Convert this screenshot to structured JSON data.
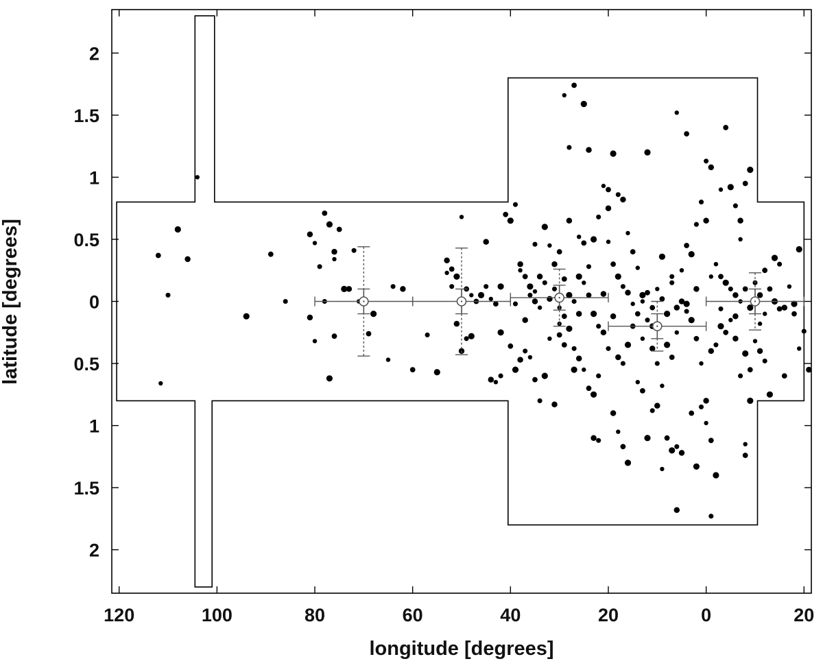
{
  "chart_data": {
    "type": "scatter",
    "xlabel": "longitude [degrees]",
    "ylabel": "latitude [degrees]",
    "xlim": [
      121.5,
      -21.5
    ],
    "ylim": [
      -2.35,
      2.35
    ],
    "x_ticks": [
      120,
      100,
      80,
      60,
      40,
      20,
      0,
      -20
    ],
    "x_tick_labels": [
      "120",
      "100",
      "80",
      "60",
      "40",
      "20",
      "0",
      "20"
    ],
    "y_ticks": [
      2,
      1.5,
      1,
      0.5,
      0,
      -0.5,
      -1,
      -1.5,
      -2
    ],
    "y_tick_labels": [
      "2",
      "1.5",
      "1",
      "0.5",
      "0",
      "0.5",
      "1",
      "1.5",
      "2"
    ],
    "grid": false,
    "legend": "none",
    "survey_boundary": [
      [
        120.5,
        0.8
      ],
      [
        104.5,
        0.8
      ],
      [
        104.5,
        2.3
      ],
      [
        100.5,
        2.3
      ],
      [
        100.5,
        0.8
      ],
      [
        40.5,
        0.8
      ],
      [
        40.5,
        1.8
      ],
      [
        -10.5,
        1.8
      ],
      [
        -10.5,
        0.8
      ],
      [
        -20,
        0.8
      ],
      [
        -20,
        -0.8
      ],
      [
        -10.5,
        -0.8
      ],
      [
        -10.5,
        -1.8
      ],
      [
        40.5,
        -1.8
      ],
      [
        40.5,
        -0.8
      ],
      [
        101,
        -0.8
      ],
      [
        101,
        -2.3
      ],
      [
        104.5,
        -2.3
      ],
      [
        104.5,
        -0.8
      ],
      [
        120.5,
        -0.8
      ]
    ],
    "binned_means": [
      {
        "x": 70,
        "y": 0.0,
        "xerr": 10,
        "yerr_inner": 0.1,
        "yerr_outer": 0.44
      },
      {
        "x": 50,
        "y": 0.0,
        "xerr": 10,
        "yerr_inner": 0.1,
        "yerr_outer": 0.43
      },
      {
        "x": 30,
        "y": 0.03,
        "xerr": 10,
        "yerr_inner": 0.1,
        "yerr_outer": 0.23
      },
      {
        "x": 10,
        "y": -0.2,
        "xerr": 10,
        "yerr_inner": 0.1,
        "yerr_outer": 0.2
      },
      {
        "x": -10,
        "y": 0.0,
        "xerr": 10,
        "yerr_inner": 0.1,
        "yerr_outer": 0.23
      }
    ],
    "points": [
      [
        104,
        1.0
      ],
      [
        112,
        0.37
      ],
      [
        108,
        0.58
      ],
      [
        110,
        0.05
      ],
      [
        106,
        0.34
      ],
      [
        111.5,
        -0.66
      ],
      [
        89,
        0.38
      ],
      [
        94,
        -0.12
      ],
      [
        86,
        0.0
      ],
      [
        81,
        0.54
      ],
      [
        80,
        0.47
      ],
      [
        78,
        0.71
      ],
      [
        77,
        0.62
      ],
      [
        79,
        0.28
      ],
      [
        76,
        0.4
      ],
      [
        76,
        0.34
      ],
      [
        75,
        0.58
      ],
      [
        74,
        0.1
      ],
      [
        78,
        0.0
      ],
      [
        81,
        -0.13
      ],
      [
        80,
        -0.32
      ],
      [
        76,
        -0.28
      ],
      [
        77,
        -0.62
      ],
      [
        72,
        0.41
      ],
      [
        73,
        0.1
      ],
      [
        71,
        0.0
      ],
      [
        69,
        -0.26
      ],
      [
        68,
        -0.1
      ],
      [
        64,
        0.12
      ],
      [
        62,
        0.1
      ],
      [
        65,
        -0.47
      ],
      [
        60,
        -0.55
      ],
      [
        55,
        -0.57
      ],
      [
        57,
        -0.27
      ],
      [
        53,
        0.33
      ],
      [
        53,
        0.23
      ],
      [
        52,
        0.26
      ],
      [
        51,
        0.2
      ],
      [
        52,
        0.12
      ],
      [
        51,
        -0.18
      ],
      [
        50,
        0.68
      ],
      [
        49,
        0.1
      ],
      [
        48,
        -0.28
      ],
      [
        49,
        -0.3
      ],
      [
        50,
        -0.4
      ],
      [
        48,
        0.05
      ],
      [
        47,
        0.0
      ],
      [
        46,
        0.05
      ],
      [
        45,
        0.12
      ],
      [
        45,
        0.48
      ],
      [
        44,
        0.02
      ],
      [
        43,
        -0.02
      ],
      [
        42,
        -0.25
      ],
      [
        42,
        -0.6
      ],
      [
        44,
        -0.63
      ],
      [
        43,
        -0.65
      ],
      [
        41,
        0.7
      ],
      [
        40,
        0.65
      ],
      [
        39,
        0.78
      ],
      [
        38,
        0.3
      ],
      [
        38,
        0.25
      ],
      [
        37,
        0.2
      ],
      [
        36,
        0.12
      ],
      [
        36,
        0.05
      ],
      [
        35,
        0.0
      ],
      [
        34,
        -0.05
      ],
      [
        40,
        -0.36
      ],
      [
        39,
        -0.55
      ],
      [
        37,
        -0.4
      ],
      [
        38,
        -0.47
      ],
      [
        36,
        -0.45
      ],
      [
        35,
        -0.63
      ],
      [
        33,
        -0.6
      ],
      [
        34,
        -0.8
      ],
      [
        31,
        0.3
      ],
      [
        32,
        0.45
      ],
      [
        30,
        0.4
      ],
      [
        33,
        0.6
      ],
      [
        31,
        0.1
      ],
      [
        32,
        0.02
      ],
      [
        30,
        -0.05
      ],
      [
        29,
        -0.12
      ],
      [
        28,
        0.05
      ],
      [
        27,
        0.0
      ],
      [
        26,
        -0.1
      ],
      [
        25,
        0.15
      ],
      [
        24,
        0.05
      ],
      [
        23,
        -0.1
      ],
      [
        22,
        -0.2
      ],
      [
        21,
        -0.25
      ],
      [
        30,
        -0.18
      ],
      [
        29,
        -0.35
      ],
      [
        28,
        -0.22
      ],
      [
        27,
        -0.38
      ],
      [
        26,
        -0.46
      ],
      [
        25,
        -0.55
      ],
      [
        24,
        -0.7
      ],
      [
        23,
        -0.75
      ],
      [
        22,
        -0.6
      ],
      [
        31,
        -0.83
      ],
      [
        29,
        1.66
      ],
      [
        27,
        1.74
      ],
      [
        25,
        1.59
      ],
      [
        28,
        1.24
      ],
      [
        24,
        1.22
      ],
      [
        21,
        0.93
      ],
      [
        20,
        0.9
      ],
      [
        19,
        1.19
      ],
      [
        18,
        0.86
      ],
      [
        17,
        0.82
      ],
      [
        16,
        0.55
      ],
      [
        15,
        0.4
      ],
      [
        23,
        0.5
      ],
      [
        22,
        0.68
      ],
      [
        20,
        0.75
      ],
      [
        20,
        0.48
      ],
      [
        19,
        0.3
      ],
      [
        18,
        0.2
      ],
      [
        17,
        0.12
      ],
      [
        16,
        0.07
      ],
      [
        15,
        -0.02
      ],
      [
        14,
        -0.1
      ],
      [
        13,
        0.05
      ],
      [
        12,
        -0.15
      ],
      [
        11,
        -0.2
      ],
      [
        10,
        0.1
      ],
      [
        9,
        0.02
      ],
      [
        8,
        -0.1
      ],
      [
        7,
        0.15
      ],
      [
        6,
        -0.05
      ],
      [
        5,
        0.25
      ],
      [
        4,
        0.45
      ],
      [
        3,
        0.38
      ],
      [
        2,
        0.62
      ],
      [
        19,
        -0.9
      ],
      [
        18,
        -1.05
      ],
      [
        17,
        -1.17
      ],
      [
        16,
        -1.3
      ],
      [
        22,
        -1.12
      ],
      [
        23,
        -1.1
      ],
      [
        14,
        -0.65
      ],
      [
        13,
        -0.72
      ],
      [
        12,
        -1.1
      ],
      [
        11,
        -0.88
      ],
      [
        10,
        -0.84
      ],
      [
        9,
        -0.68
      ],
      [
        8,
        -1.1
      ],
      [
        7,
        -1.2
      ],
      [
        6,
        -1.17
      ],
      [
        5,
        -1.22
      ],
      [
        9,
        -1.35
      ],
      [
        3,
        -0.9
      ],
      [
        2,
        -1.33
      ],
      [
        1,
        -0.85
      ],
      [
        0,
        -0.8
      ],
      [
        0,
        -0.98
      ],
      [
        -1,
        -1.12
      ],
      [
        -2,
        -1.4
      ],
      [
        -1,
        -1.73
      ],
      [
        6,
        -1.68
      ],
      [
        6,
        1.52
      ],
      [
        4,
        1.35
      ],
      [
        12,
        1.2
      ],
      [
        0,
        1.13
      ],
      [
        -1,
        1.08
      ],
      [
        -3,
        0.9
      ],
      [
        -4,
        1.4
      ],
      [
        -5,
        0.92
      ],
      [
        -6,
        0.77
      ],
      [
        -7,
        0.65
      ],
      [
        -7,
        0.5
      ],
      [
        -8,
        0.95
      ],
      [
        -9,
        1.06
      ],
      [
        1,
        0.8
      ],
      [
        0,
        0.65
      ],
      [
        -2,
        0.3
      ],
      [
        -3,
        0.2
      ],
      [
        -4,
        0.15
      ],
      [
        -5,
        0.1
      ],
      [
        -6,
        0.05
      ],
      [
        -7,
        0.0
      ],
      [
        -8,
        0.1
      ],
      [
        -9,
        -0.05
      ],
      [
        -10,
        0.15
      ],
      [
        -11,
        0.05
      ],
      [
        -12,
        -0.1
      ],
      [
        -13,
        0.1
      ],
      [
        -14,
        0.0
      ],
      [
        -15,
        0.3
      ],
      [
        -16,
        -0.05
      ],
      [
        -17,
        0.12
      ],
      [
        -18,
        -0.1
      ],
      [
        -19,
        0.42
      ],
      [
        -20,
        -0.24
      ],
      [
        -21,
        -0.55
      ],
      [
        -19,
        -0.38
      ],
      [
        -16,
        -0.6
      ],
      [
        -13,
        -0.75
      ],
      [
        -12,
        -0.48
      ],
      [
        -11,
        -0.4
      ],
      [
        -10,
        -0.32
      ],
      [
        -9,
        -0.55
      ],
      [
        -8,
        -0.42
      ],
      [
        -7,
        -0.6
      ],
      [
        -6,
        -0.3
      ],
      [
        -5,
        -0.15
      ],
      [
        -4,
        -0.25
      ],
      [
        -3,
        -0.2
      ],
      [
        -2,
        -0.35
      ],
      [
        -1,
        -0.4
      ],
      [
        1,
        -0.5
      ],
      [
        2,
        -0.3
      ],
      [
        3,
        -0.15
      ],
      [
        4,
        -0.08
      ],
      [
        5,
        0.0
      ],
      [
        6,
        -0.25
      ],
      [
        7,
        -0.45
      ],
      [
        8,
        -0.35
      ],
      [
        10,
        -0.5
      ],
      [
        11,
        -0.38
      ],
      [
        13,
        -0.3
      ],
      [
        15,
        -0.2
      ],
      [
        16,
        -0.35
      ],
      [
        17,
        -0.5
      ],
      [
        18,
        -0.45
      ],
      [
        -8,
        -1.15
      ],
      [
        -8,
        -1.24
      ],
      [
        -9,
        -0.8
      ],
      [
        33,
        0.15
      ],
      [
        34,
        0.2
      ],
      [
        35,
        0.08
      ],
      [
        29,
        0.18
      ],
      [
        26,
        0.2
      ],
      [
        24,
        0.28
      ],
      [
        21,
        0.06
      ],
      [
        14,
        0.27
      ],
      [
        12,
        0.07
      ],
      [
        9,
        0.36
      ],
      [
        7,
        0.2
      ],
      [
        2,
        0.1
      ],
      [
        -1,
        0.2
      ],
      [
        -12,
        0.25
      ],
      [
        -14,
        0.35
      ],
      [
        35,
        0.46
      ],
      [
        28,
        0.65
      ],
      [
        26,
        0.52
      ],
      [
        25,
        0.47
      ],
      [
        42,
        0.12
      ],
      [
        39,
        -0.02
      ],
      [
        37,
        -0.15
      ],
      [
        32,
        -0.3
      ],
      [
        30,
        -0.27
      ],
      [
        27,
        -0.55
      ],
      [
        20,
        -0.38
      ],
      [
        19,
        -0.12
      ],
      [
        13,
        0.0
      ],
      [
        11,
        -0.05
      ],
      [
        4,
        -0.02
      ],
      [
        -3,
        -0.06
      ],
      [
        -6,
        -0.12
      ],
      [
        -11,
        -0.18
      ],
      [
        -15,
        -0.06
      ],
      [
        -18,
        -0.02
      ]
    ]
  }
}
